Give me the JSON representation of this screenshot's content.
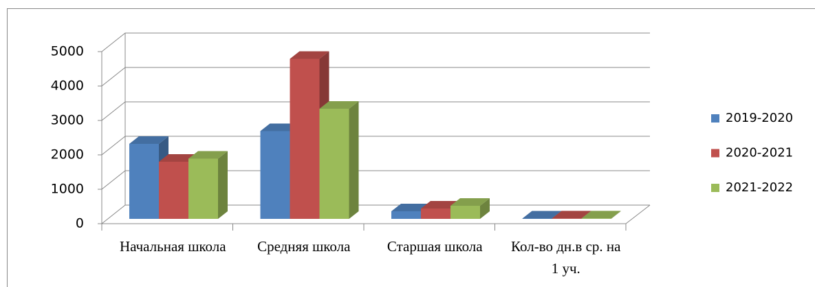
{
  "chart_data": {
    "type": "bar3d",
    "categories": [
      "Начальная школа",
      "Средняя школа",
      "Старшая школа",
      "Кол-во дн.в ср. на 1 уч."
    ],
    "series": [
      {
        "name": "2019-2020",
        "color": "#4f81bd",
        "values": [
          2180,
          2550,
          220,
          10
        ]
      },
      {
        "name": "2020-2021",
        "color": "#c0504d",
        "values": [
          1660,
          4650,
          300,
          12
        ]
      },
      {
        "name": "2021-2022",
        "color": "#9bbb59",
        "values": [
          1750,
          3200,
          380,
          12
        ]
      }
    ],
    "ylim": [
      0,
      5000
    ],
    "yticks": [
      0,
      1000,
      2000,
      3000,
      4000,
      5000
    ],
    "grid": true,
    "legend": "right"
  }
}
